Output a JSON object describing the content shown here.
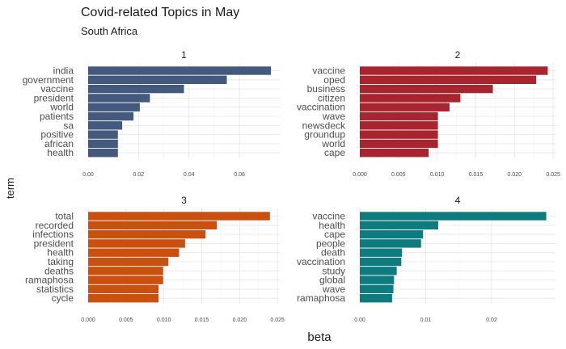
{
  "title": "Covid-related Topics in May",
  "subtitle": "South Africa",
  "chart_data": {
    "type": "bar",
    "orientation": "horizontal",
    "xlabel": "beta",
    "ylabel": "term",
    "grid": true,
    "facets": [
      {
        "label": "1",
        "color": "#435a7e",
        "categories": [
          "india",
          "government",
          "vaccine",
          "president",
          "world",
          "patients",
          "sa",
          "positive",
          "african",
          "health"
        ],
        "values": [
          0.0725,
          0.055,
          0.038,
          0.0245,
          0.0205,
          0.018,
          0.0135,
          0.0118,
          0.0118,
          0.0118
        ],
        "xlim": [
          0,
          0.076
        ],
        "ticks": [
          0.0,
          0.02,
          0.04,
          0.06
        ],
        "tick_labels": [
          "0.00",
          "0.02",
          "0.04",
          "0.06"
        ]
      },
      {
        "label": "2",
        "color": "#a8242f",
        "categories": [
          "vaccine",
          "oped",
          "business",
          "citizen",
          "vaccination",
          "wave",
          "newsdeck",
          "groundup",
          "world",
          "cape"
        ],
        "values": [
          0.0243,
          0.0228,
          0.0172,
          0.013,
          0.0116,
          0.0101,
          0.0101,
          0.0101,
          0.0101,
          0.0089
        ],
        "xlim": [
          0,
          0.0253
        ],
        "ticks": [
          0.0,
          0.005,
          0.01,
          0.015,
          0.02,
          0.025
        ],
        "tick_labels": [
          "0.000",
          "0.005",
          "0.010",
          "0.015",
          "0.020",
          "0.025"
        ]
      },
      {
        "label": "3",
        "color": "#c9500f",
        "categories": [
          "total",
          "recorded",
          "infections",
          "president",
          "health",
          "taking",
          "deaths",
          "ramaphosa",
          "statistics",
          "cycle"
        ],
        "values": [
          0.024,
          0.017,
          0.0155,
          0.0128,
          0.012,
          0.0106,
          0.0099,
          0.0099,
          0.0093,
          0.0093
        ],
        "xlim": [
          0,
          0.0253
        ],
        "ticks": [
          0.0,
          0.005,
          0.01,
          0.015,
          0.02,
          0.025
        ],
        "tick_labels": [
          "0.000",
          "0.005",
          "0.010",
          "0.015",
          "0.020",
          "0.025"
        ]
      },
      {
        "label": "4",
        "color": "#0e7c7f",
        "categories": [
          "vaccine",
          "health",
          "cape",
          "people",
          "death",
          "vaccination",
          "study",
          "global",
          "wave",
          "ramaphosa"
        ],
        "values": [
          0.0283,
          0.0119,
          0.0096,
          0.0093,
          0.0064,
          0.0063,
          0.0056,
          0.0052,
          0.0051,
          0.0049
        ],
        "xlim": [
          0,
          0.0297
        ],
        "ticks": [
          0.0,
          0.01,
          0.02
        ],
        "tick_labels": [
          "0.00",
          "0.01",
          "0.02"
        ]
      }
    ]
  }
}
